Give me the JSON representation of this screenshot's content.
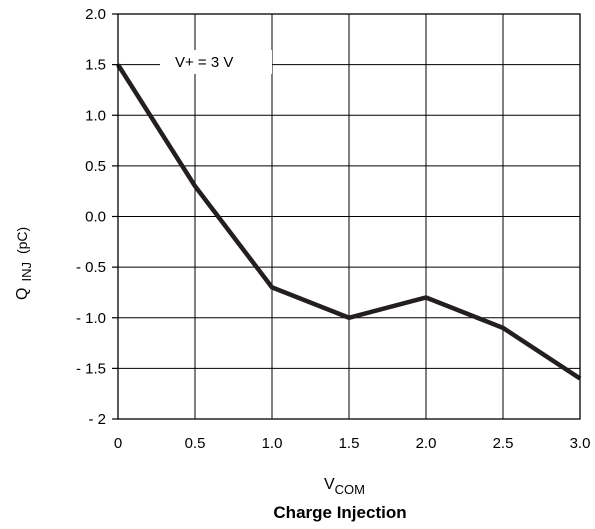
{
  "chart_data": {
    "type": "line",
    "title": "Charge Injection",
    "xlabel": {
      "main": "V",
      "sub": "COM"
    },
    "ylabel": {
      "main": "Q",
      "sub": "INJ",
      "unit": "(pC)"
    },
    "xlim": [
      0,
      3.0
    ],
    "ylim": [
      -2,
      2.0
    ],
    "xticks": [
      0,
      0.5,
      1.0,
      1.5,
      2.0,
      2.5,
      3.0
    ],
    "xtick_labels": [
      "0",
      "0.5",
      "1.0",
      "1.5",
      "2.0",
      "2.5",
      "3.0"
    ],
    "yticks": [
      2.0,
      1.5,
      1.0,
      0.5,
      0.0,
      -0.5,
      -1.0,
      -1.5,
      -2
    ],
    "ytick_labels": [
      "2.0",
      "1.5",
      "1.0",
      "0.5",
      "0.0",
      "- 0.5",
      "- 1.0",
      "- 1.5",
      "- 2"
    ],
    "grid": true,
    "annotation": "V+ = 3 V",
    "series": [
      {
        "x": [
          0,
          0.5,
          1.0,
          1.5,
          2.0,
          2.5,
          3.0
        ],
        "y": [
          1.5,
          0.3,
          -0.7,
          -1.0,
          -0.8,
          -1.1,
          -1.6
        ],
        "color": "#231f20"
      }
    ]
  }
}
